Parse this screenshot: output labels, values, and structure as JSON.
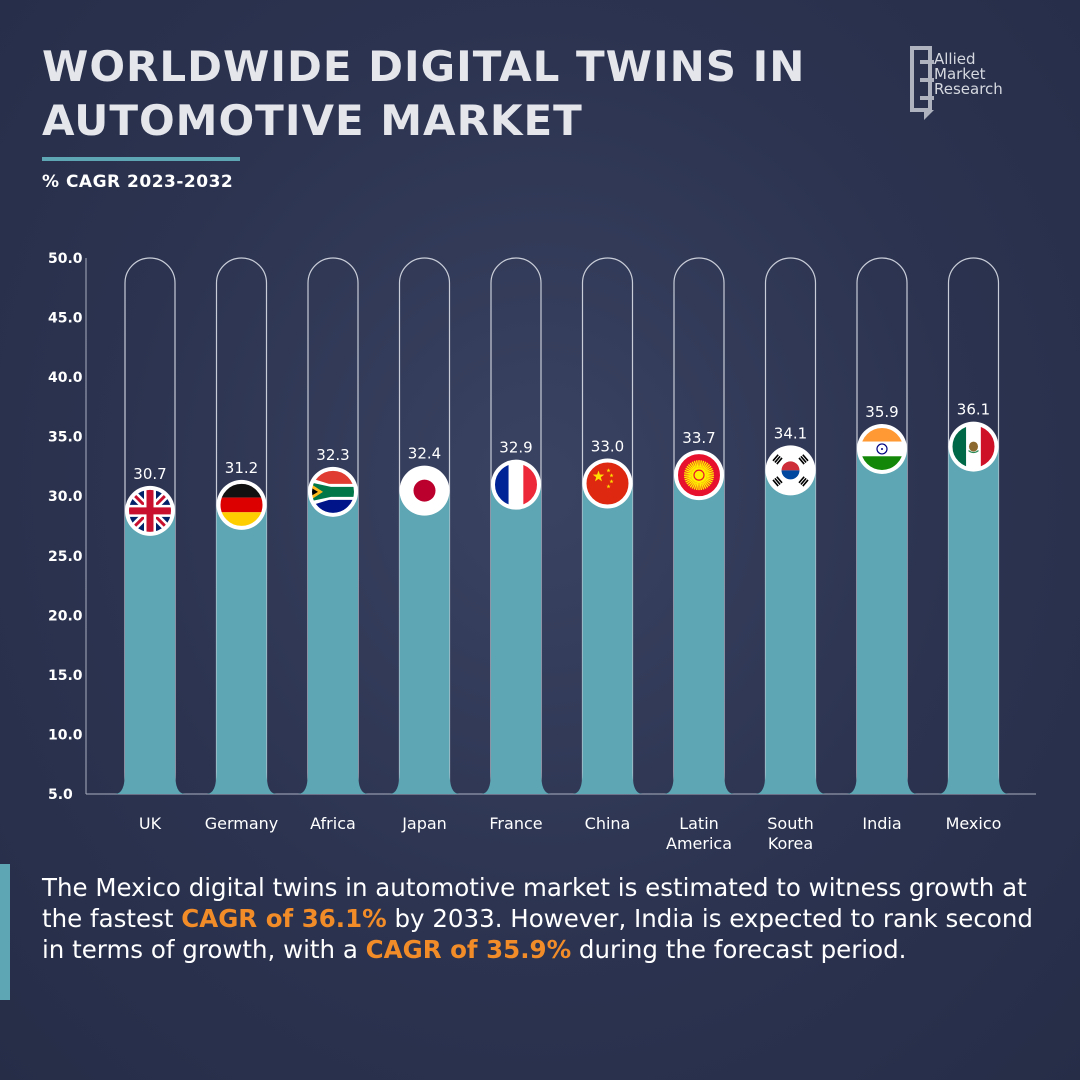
{
  "header": {
    "title": "WORLDWIDE DIGITAL TWINS IN AUTOMOTIVE MARKET",
    "subtitle": "% CAGR 2023-2032"
  },
  "logo": {
    "text_line1": "Allied",
    "text_line2": "Market",
    "text_line3": "Research"
  },
  "chart_data": {
    "type": "bar",
    "title": "WORLDWIDE DIGITAL TWINS IN AUTOMOTIVE MARKET",
    "subtitle": "% CAGR 2023-2032",
    "ylim": [
      5,
      50
    ],
    "yticks": [
      "50.0",
      "45.0",
      "40.0",
      "35.0",
      "30.0",
      "25.0",
      "20.0",
      "15.0",
      "10.0",
      "5.0"
    ],
    "grid": false,
    "categories": [
      "UK",
      "Germany",
      "Africa",
      "Japan",
      "France",
      "China",
      "Latin America",
      "South Korea",
      "India",
      "Mexico"
    ],
    "category_lines": [
      [
        "UK"
      ],
      [
        "Germany"
      ],
      [
        "Africa"
      ],
      [
        "Japan"
      ],
      [
        "France"
      ],
      [
        "China"
      ],
      [
        "Latin",
        "America"
      ],
      [
        "South",
        "Korea"
      ],
      [
        "India"
      ],
      [
        "Mexico"
      ]
    ],
    "values": [
      30.7,
      31.2,
      32.3,
      32.4,
      32.9,
      33.0,
      33.7,
      34.1,
      35.9,
      36.1
    ],
    "value_labels": [
      "30.7",
      "31.2",
      "32.3",
      "32.4",
      "32.9",
      "33.0",
      "33.7",
      "34.1",
      "35.9",
      "36.1"
    ],
    "flag_icons": [
      "uk-flag-icon",
      "germany-flag-icon",
      "south-africa-flag-icon",
      "japan-flag-icon",
      "france-flag-icon",
      "china-flag-icon",
      "kyrgyzstan-flag-icon",
      "south-korea-flag-icon",
      "india-flag-icon",
      "mexico-flag-icon"
    ],
    "bar_color": "#5ea6b3"
  },
  "callout": {
    "part1": "The Mexico digital twins in automotive market is estimated to witness growth at the fastest ",
    "highlight1": "CAGR of 36.1%",
    "part2": " by 2033. However, India is expected to rank second in terms of growth, with a ",
    "highlight2": "CAGR of 35.9%",
    "part3": " during the forecast period."
  },
  "colors": {
    "accent": "#5ea6b3",
    "highlight": "#f28c28",
    "background": "#2b3350"
  }
}
